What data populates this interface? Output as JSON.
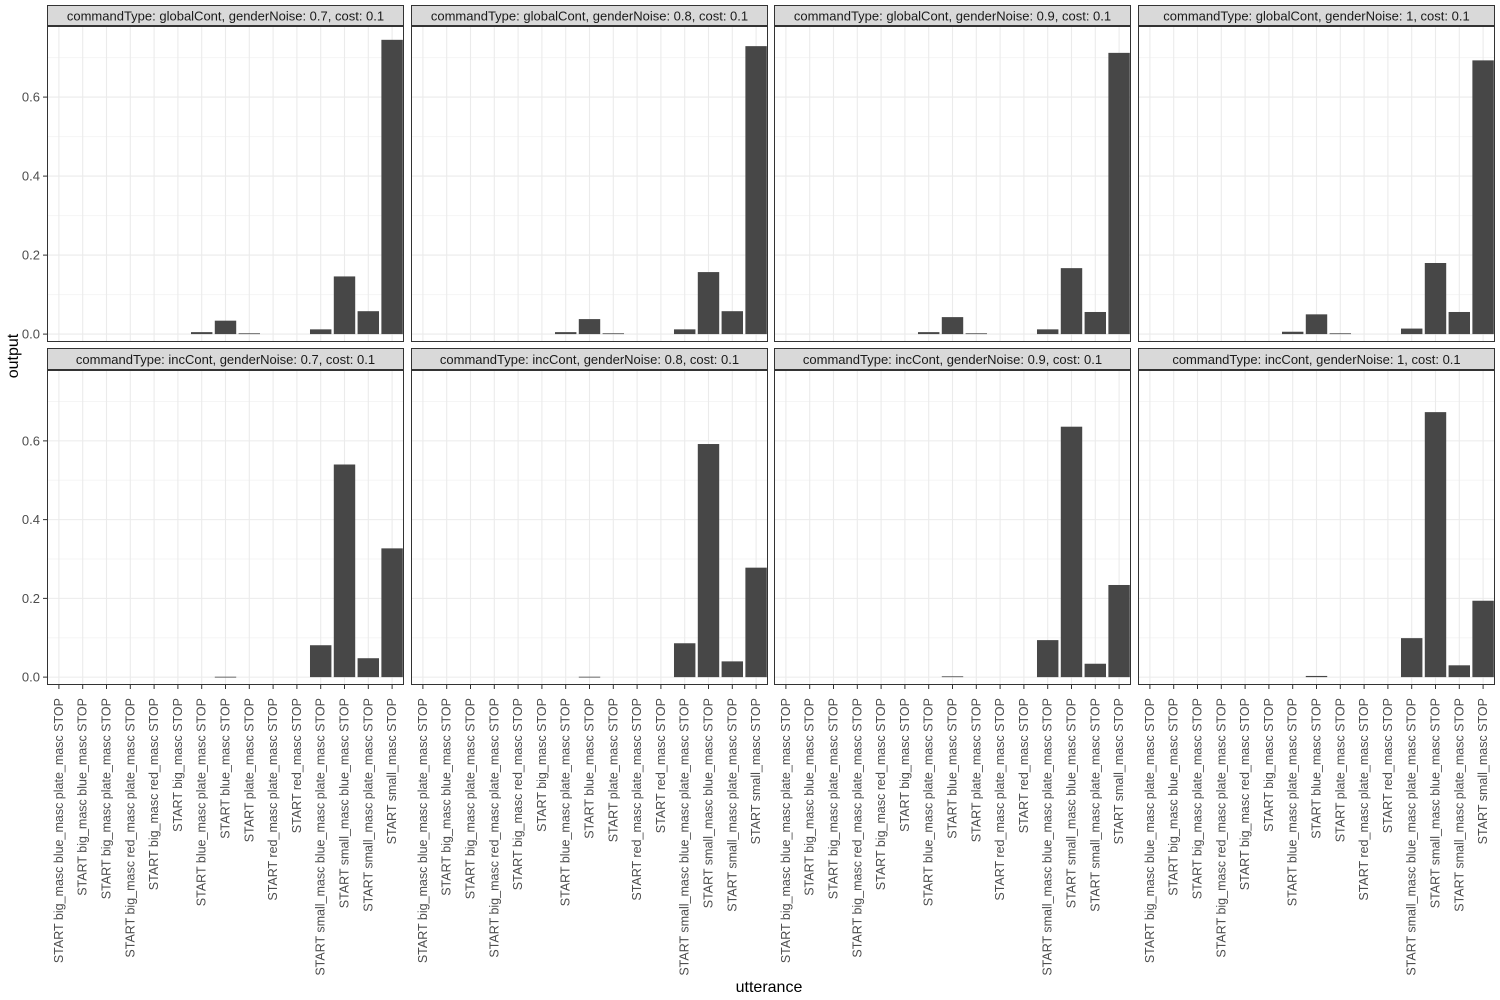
{
  "axis_labels": {
    "x": "utterance",
    "y": "output"
  },
  "chart_data": {
    "type": "bar",
    "xlabel": "utterance",
    "ylabel": "output",
    "ylim": [
      -0.02,
      0.78
    ],
    "y_ticks": [
      0.0,
      0.2,
      0.4,
      0.6
    ],
    "y_tick_labels": [
      "0.0",
      "0.2",
      "0.4",
      "0.6"
    ],
    "grid": true,
    "facet_layout": "2 rows x 4 columns",
    "categories": [
      "START big_masc blue_masc plate_masc STOP",
      "START big_masc blue_masc STOP",
      "START big_masc plate_masc STOP",
      "START big_masc red_masc plate_masc STOP",
      "START big_masc red_masc STOP",
      "START big_masc STOP",
      "START blue_masc plate_masc STOP",
      "START blue_masc STOP",
      "START plate_masc STOP",
      "START red_masc plate_masc STOP",
      "START red_masc STOP",
      "START small_masc blue_masc plate_masc STOP",
      "START small_masc blue_masc STOP",
      "START small_masc plate_masc STOP",
      "START small_masc STOP"
    ],
    "panels": [
      {
        "title": "commandType: globalCont, genderNoise: 0.7, cost: 0.1",
        "values": [
          0,
          0,
          0,
          0,
          0,
          0,
          0.005,
          0.034,
          0.002,
          0,
          0,
          0.012,
          0.146,
          0.058,
          0.745
        ]
      },
      {
        "title": "commandType: globalCont, genderNoise: 0.8, cost: 0.1",
        "values": [
          0,
          0,
          0,
          0,
          0,
          0,
          0.005,
          0.038,
          0.002,
          0,
          0,
          0.012,
          0.157,
          0.058,
          0.729
        ]
      },
      {
        "title": "commandType: globalCont, genderNoise: 0.9, cost: 0.1",
        "values": [
          0,
          0,
          0,
          0,
          0,
          0,
          0.005,
          0.043,
          0.002,
          0,
          0,
          0.012,
          0.167,
          0.056,
          0.712
        ]
      },
      {
        "title": "commandType: globalCont, genderNoise: 1, cost: 0.1",
        "values": [
          0,
          0,
          0,
          0,
          0,
          0,
          0.006,
          0.05,
          0.002,
          0,
          0,
          0.014,
          0.18,
          0.056,
          0.693
        ]
      },
      {
        "title": "commandType: incCont, genderNoise: 0.7, cost: 0.1",
        "values": [
          0,
          0,
          0,
          0,
          0,
          0,
          0,
          0.001,
          0,
          0,
          0,
          0.081,
          0.54,
          0.048,
          0.327
        ]
      },
      {
        "title": "commandType: incCont, genderNoise: 0.8, cost: 0.1",
        "values": [
          0,
          0,
          0,
          0,
          0,
          0,
          0,
          0.001,
          0,
          0,
          0,
          0.086,
          0.592,
          0.04,
          0.278
        ]
      },
      {
        "title": "commandType: incCont, genderNoise: 0.9, cost: 0.1",
        "values": [
          0,
          0,
          0,
          0,
          0,
          0,
          0,
          0.002,
          0,
          0,
          0,
          0.094,
          0.636,
          0.034,
          0.234
        ]
      },
      {
        "title": "commandType: incCont, genderNoise: 1, cost: 0.1",
        "values": [
          0,
          0,
          0,
          0,
          0,
          0,
          0,
          0.003,
          0,
          0,
          0,
          0.099,
          0.673,
          0.03,
          0.194
        ]
      }
    ],
    "colors": {
      "bar": "#474747",
      "strip_fill": "#d9d9d9",
      "strip_border": "#333333",
      "panel_border": "#333333",
      "grid_major": "#ebebeb",
      "grid_minor": "#f5f5f5",
      "tick_text": "#4d4d4d",
      "axis_title": "#000000"
    }
  }
}
